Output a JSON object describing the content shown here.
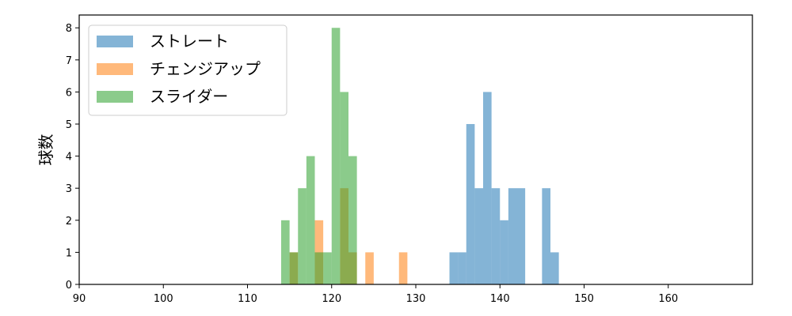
{
  "chart_data": {
    "type": "bar",
    "xlabel": "",
    "ylabel": "球数",
    "xlim": [
      90,
      170
    ],
    "ylim": [
      0,
      8.4
    ],
    "xticks": [
      90,
      100,
      110,
      120,
      130,
      140,
      150,
      160
    ],
    "yticks": [
      0,
      1,
      2,
      3,
      4,
      5,
      6,
      7,
      8
    ],
    "bin_width": 1,
    "legend_position": "top-left",
    "grid": false,
    "series": [
      {
        "name": "ストレート",
        "color": "#1f77b4",
        "bins": [
          {
            "x": 134,
            "y": 1
          },
          {
            "x": 135,
            "y": 1
          },
          {
            "x": 136,
            "y": 5
          },
          {
            "x": 137,
            "y": 3
          },
          {
            "x": 138,
            "y": 6
          },
          {
            "x": 139,
            "y": 3
          },
          {
            "x": 140,
            "y": 2
          },
          {
            "x": 141,
            "y": 3
          },
          {
            "x": 142,
            "y": 3
          },
          {
            "x": 145,
            "y": 3
          },
          {
            "x": 146,
            "y": 1
          }
        ]
      },
      {
        "name": "チェンジアップ",
        "color": "#ff7f0e",
        "bins": [
          {
            "x": 115,
            "y": 1
          },
          {
            "x": 118,
            "y": 2
          },
          {
            "x": 121,
            "y": 3
          },
          {
            "x": 122,
            "y": 1
          },
          {
            "x": 124,
            "y": 1
          },
          {
            "x": 128,
            "y": 1
          }
        ]
      },
      {
        "name": "スライダー",
        "color": "#2ca02c",
        "bins": [
          {
            "x": 114,
            "y": 2
          },
          {
            "x": 115,
            "y": 1
          },
          {
            "x": 116,
            "y": 3
          },
          {
            "x": 117,
            "y": 4
          },
          {
            "x": 118,
            "y": 1
          },
          {
            "x": 119,
            "y": 1
          },
          {
            "x": 120,
            "y": 8
          },
          {
            "x": 121,
            "y": 6
          },
          {
            "x": 122,
            "y": 4
          }
        ]
      }
    ]
  }
}
